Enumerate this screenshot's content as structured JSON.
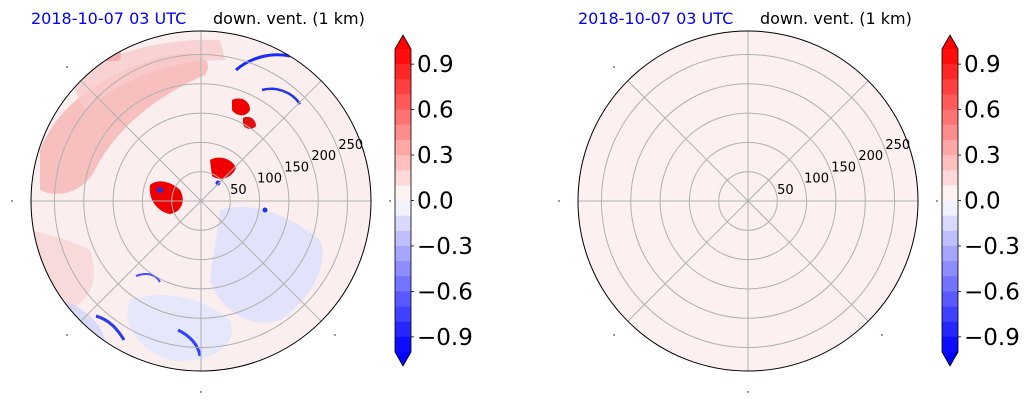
{
  "chart_data": [
    {
      "type": "heatmap",
      "projection": "polar",
      "title_left": "2018-10-07 03 UTC",
      "title_right": "down. vent. (1 km)",
      "r_ticks": [
        50,
        100,
        150,
        200,
        250
      ],
      "r_max": 290,
      "grid": true,
      "field": "mixed positive and negative values across the domain",
      "colorbar": {
        "ticks": [
          "0.9",
          "0.6",
          "0.3",
          "0.0",
          "−0.3",
          "−0.6",
          "−0.9"
        ],
        "range": [
          -1.0,
          1.0
        ],
        "cmap": "bwr",
        "extend": "both"
      }
    },
    {
      "type": "heatmap",
      "projection": "polar",
      "title_left": "2018-10-07 03 UTC",
      "title_right": "down. vent. (1 km)",
      "r_ticks": [
        50,
        100,
        150,
        200,
        250
      ],
      "r_max": 290,
      "grid": true,
      "field": "uniform value near zero",
      "colorbar": {
        "ticks": [
          "0.9",
          "0.6",
          "0.3",
          "0.0",
          "−0.3",
          "−0.6",
          "−0.9"
        ],
        "range": [
          -1.0,
          1.0
        ],
        "cmap": "bwr",
        "extend": "both"
      }
    }
  ],
  "colors": {
    "title_date": "#0000ff",
    "grid": "#b0b0b0",
    "uniform_fill": "#fdf0f0",
    "neutral_fill": "#fbeeee"
  }
}
